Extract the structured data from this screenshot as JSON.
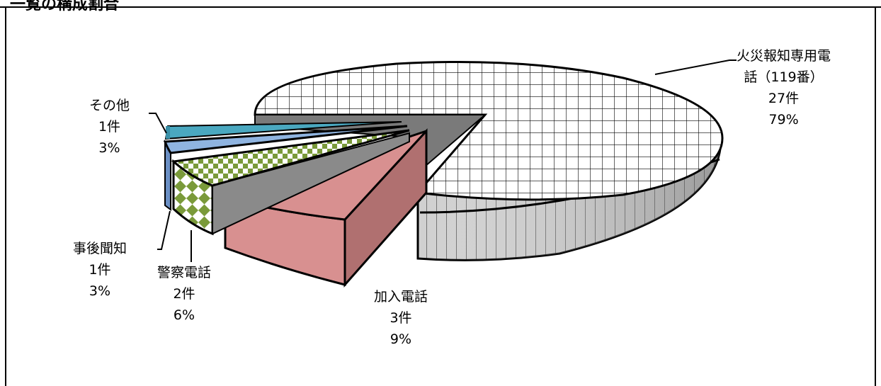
{
  "chart_data": {
    "type": "pie",
    "title": "",
    "slices": [
      {
        "name": "火災報知専用電話（119番）",
        "count_label": "27件",
        "percent_label": "79%",
        "value": 27,
        "percent": 79,
        "fill": "#ffffff",
        "pattern": "grid"
      },
      {
        "name": "加入電話",
        "count_label": "3件",
        "percent_label": "9%",
        "value": 3,
        "percent": 9,
        "fill": "#d89090",
        "pattern": "solid"
      },
      {
        "name": "警察電話",
        "count_label": "2件",
        "percent_label": "6%",
        "value": 2,
        "percent": 6,
        "fill": "#7a9a3a",
        "pattern": "checker"
      },
      {
        "name": "事後聞知",
        "count_label": "1件",
        "percent_label": "3%",
        "value": 1,
        "percent": 3,
        "fill": "#8fb4e0",
        "pattern": "solid"
      },
      {
        "name": "その他",
        "count_label": "1件",
        "percent_label": "3%",
        "value": 1,
        "percent": 3,
        "fill": "#4aa8c0",
        "pattern": "solid"
      }
    ],
    "three_d": true,
    "exploded": true,
    "legend": "none",
    "data_labels": "outside with leader lines"
  },
  "labels": {
    "fire": {
      "line1": "火災報知専用電",
      "line2": "話（119番）",
      "count": "27件",
      "pct": "79%"
    },
    "subscriber": {
      "line1": "加入電話",
      "count": "3件",
      "pct": "9%"
    },
    "police": {
      "line1": "警察電話",
      "count": "2件",
      "pct": "6%"
    },
    "afterward": {
      "line1": "事後聞知",
      "count": "1件",
      "pct": "3%"
    },
    "other": {
      "line1": "その他",
      "count": "1件",
      "pct": "3%"
    }
  },
  "header_fragment": "一覧の構成割合"
}
